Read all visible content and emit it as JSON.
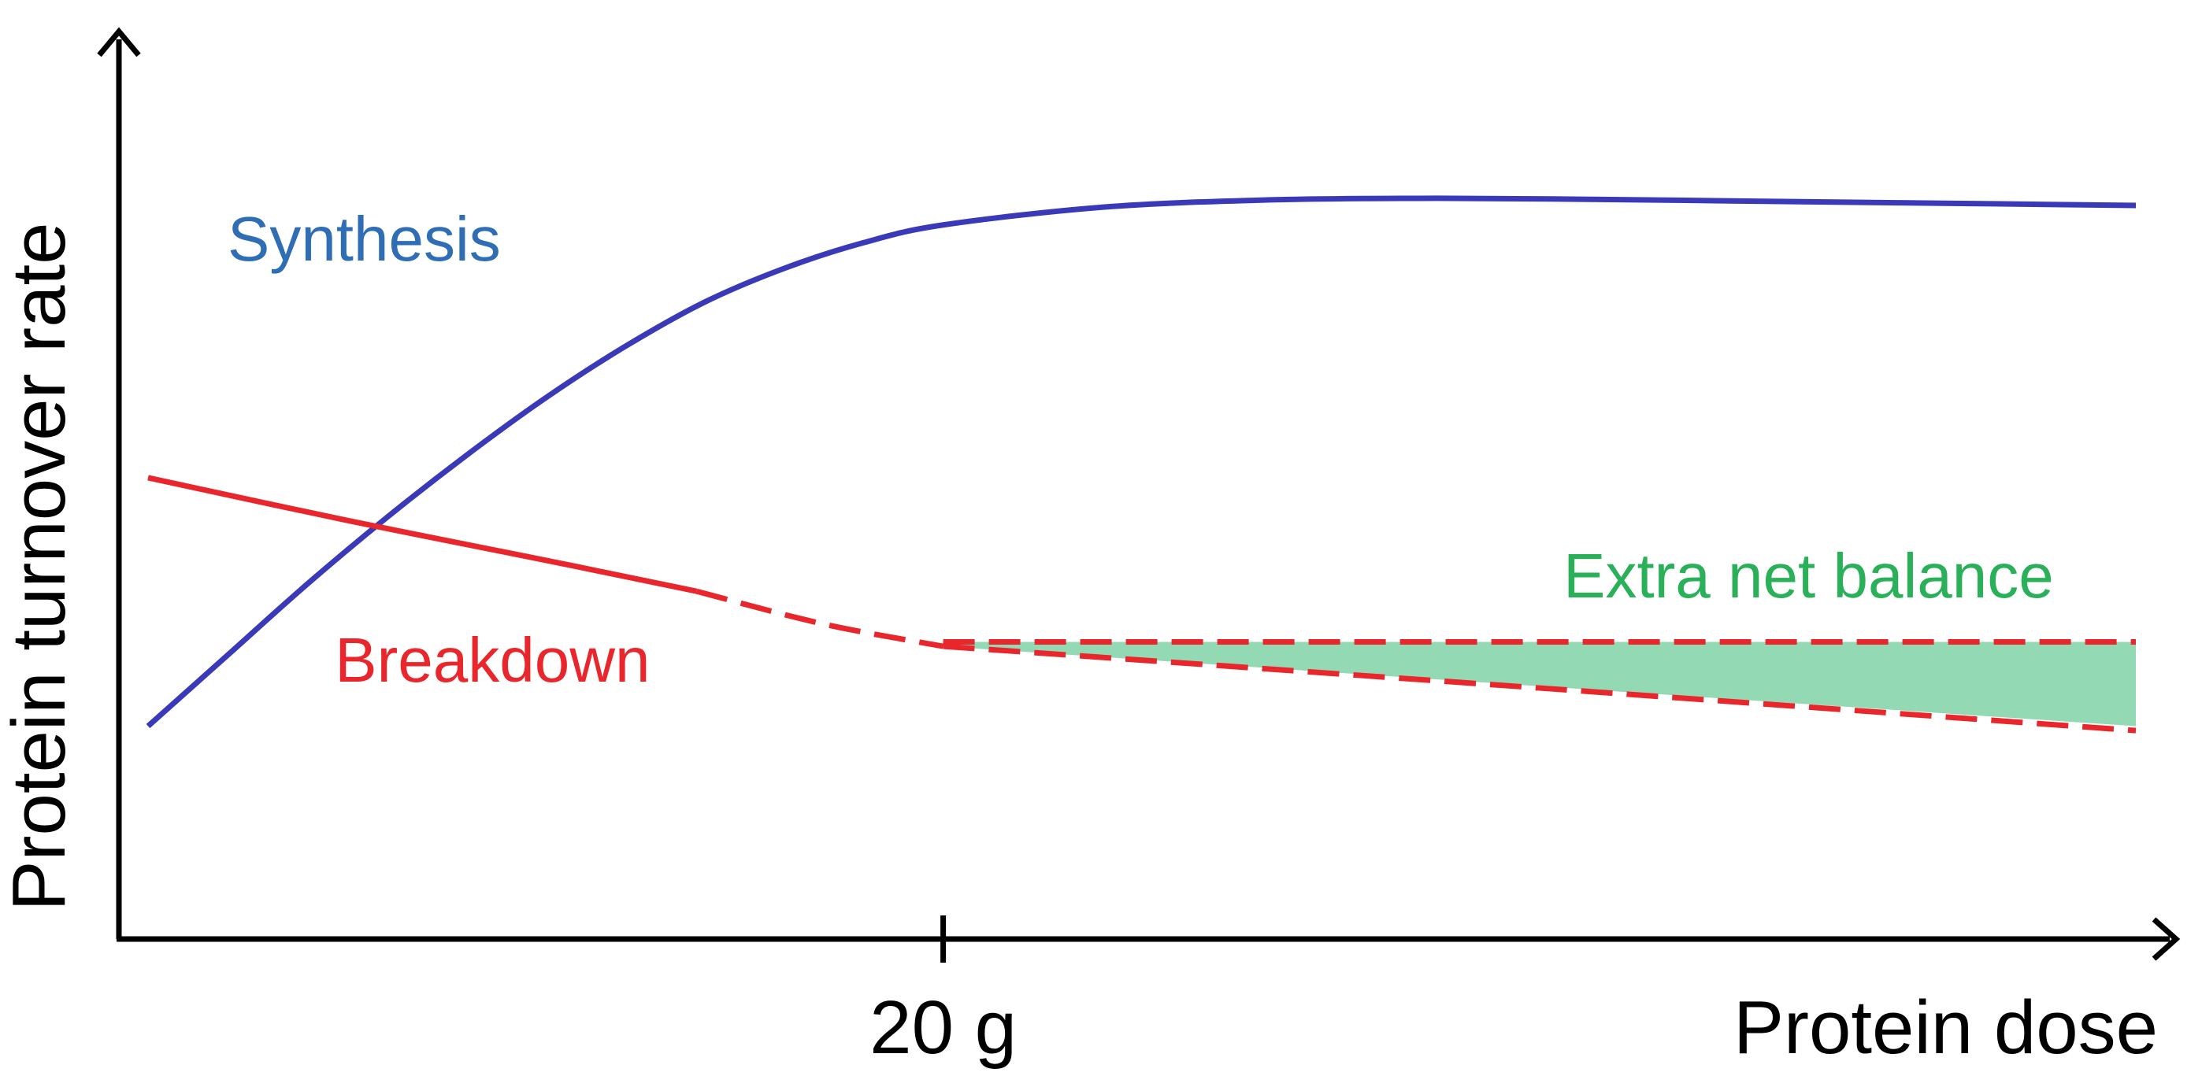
{
  "chart_data": {
    "type": "line",
    "title": "",
    "xlabel": "Protein dose",
    "ylabel": "Protein turnover rate",
    "xlim": [
      0,
      50
    ],
    "ylim": [
      0,
      100
    ],
    "x_ticks": [
      {
        "value": 20,
        "label": "20 g"
      }
    ],
    "series": [
      {
        "name": "Synthesis",
        "style": "solid",
        "color": "#3a3ab8",
        "x": [
          0,
          2,
          4,
          6,
          8,
          10,
          12,
          14,
          16,
          18,
          20,
          24,
          28,
          32,
          36,
          40,
          44,
          48,
          50
        ],
        "y": [
          24,
          32,
          40,
          47.5,
          54.5,
          61,
          66.8,
          71.8,
          75.6,
          78.5,
          80.5,
          82.5,
          83.3,
          83.5,
          83.4,
          83.2,
          83.0,
          82.8,
          82.7
        ]
      },
      {
        "name": "Breakdown",
        "style": "solid",
        "color": "#e8262b",
        "x": [
          0,
          5,
          10,
          13.8
        ],
        "y": [
          52,
          47.2,
          42.7,
          39.2
        ]
      },
      {
        "name": "",
        "style": "dashed",
        "color": "#e8262b",
        "x": [
          13.8,
          17,
          20
        ],
        "y": [
          39.2,
          35.5,
          33.0
        ]
      },
      {
        "name": "",
        "style": "dashed",
        "color": "#e8262b",
        "x": [
          20,
          50
        ],
        "y": [
          33.5,
          33.5
        ]
      },
      {
        "name": "",
        "style": "dashed",
        "color": "#e8262b",
        "x": [
          20,
          35,
          50
        ],
        "y": [
          33.0,
          28.3,
          23.5
        ]
      }
    ],
    "shaded_area": {
      "name": "Extra net balance",
      "color": "#93d9b3",
      "x": [
        20,
        50
      ],
      "y_top": [
        33.5,
        33.5
      ],
      "y_bottom": [
        33.0,
        24.0
      ]
    },
    "annotations": [
      {
        "text": "Synthesis",
        "color": "#2f6eb5",
        "x": 2.0,
        "y": 76.5
      },
      {
        "text": "Breakdown",
        "color": "#e8262b",
        "x": 4.7,
        "y": 29.0
      },
      {
        "text": "Extra net balance",
        "color": "#2bb05a",
        "x": 35.6,
        "y": 38.5
      }
    ],
    "grid": false,
    "legend": "none"
  }
}
